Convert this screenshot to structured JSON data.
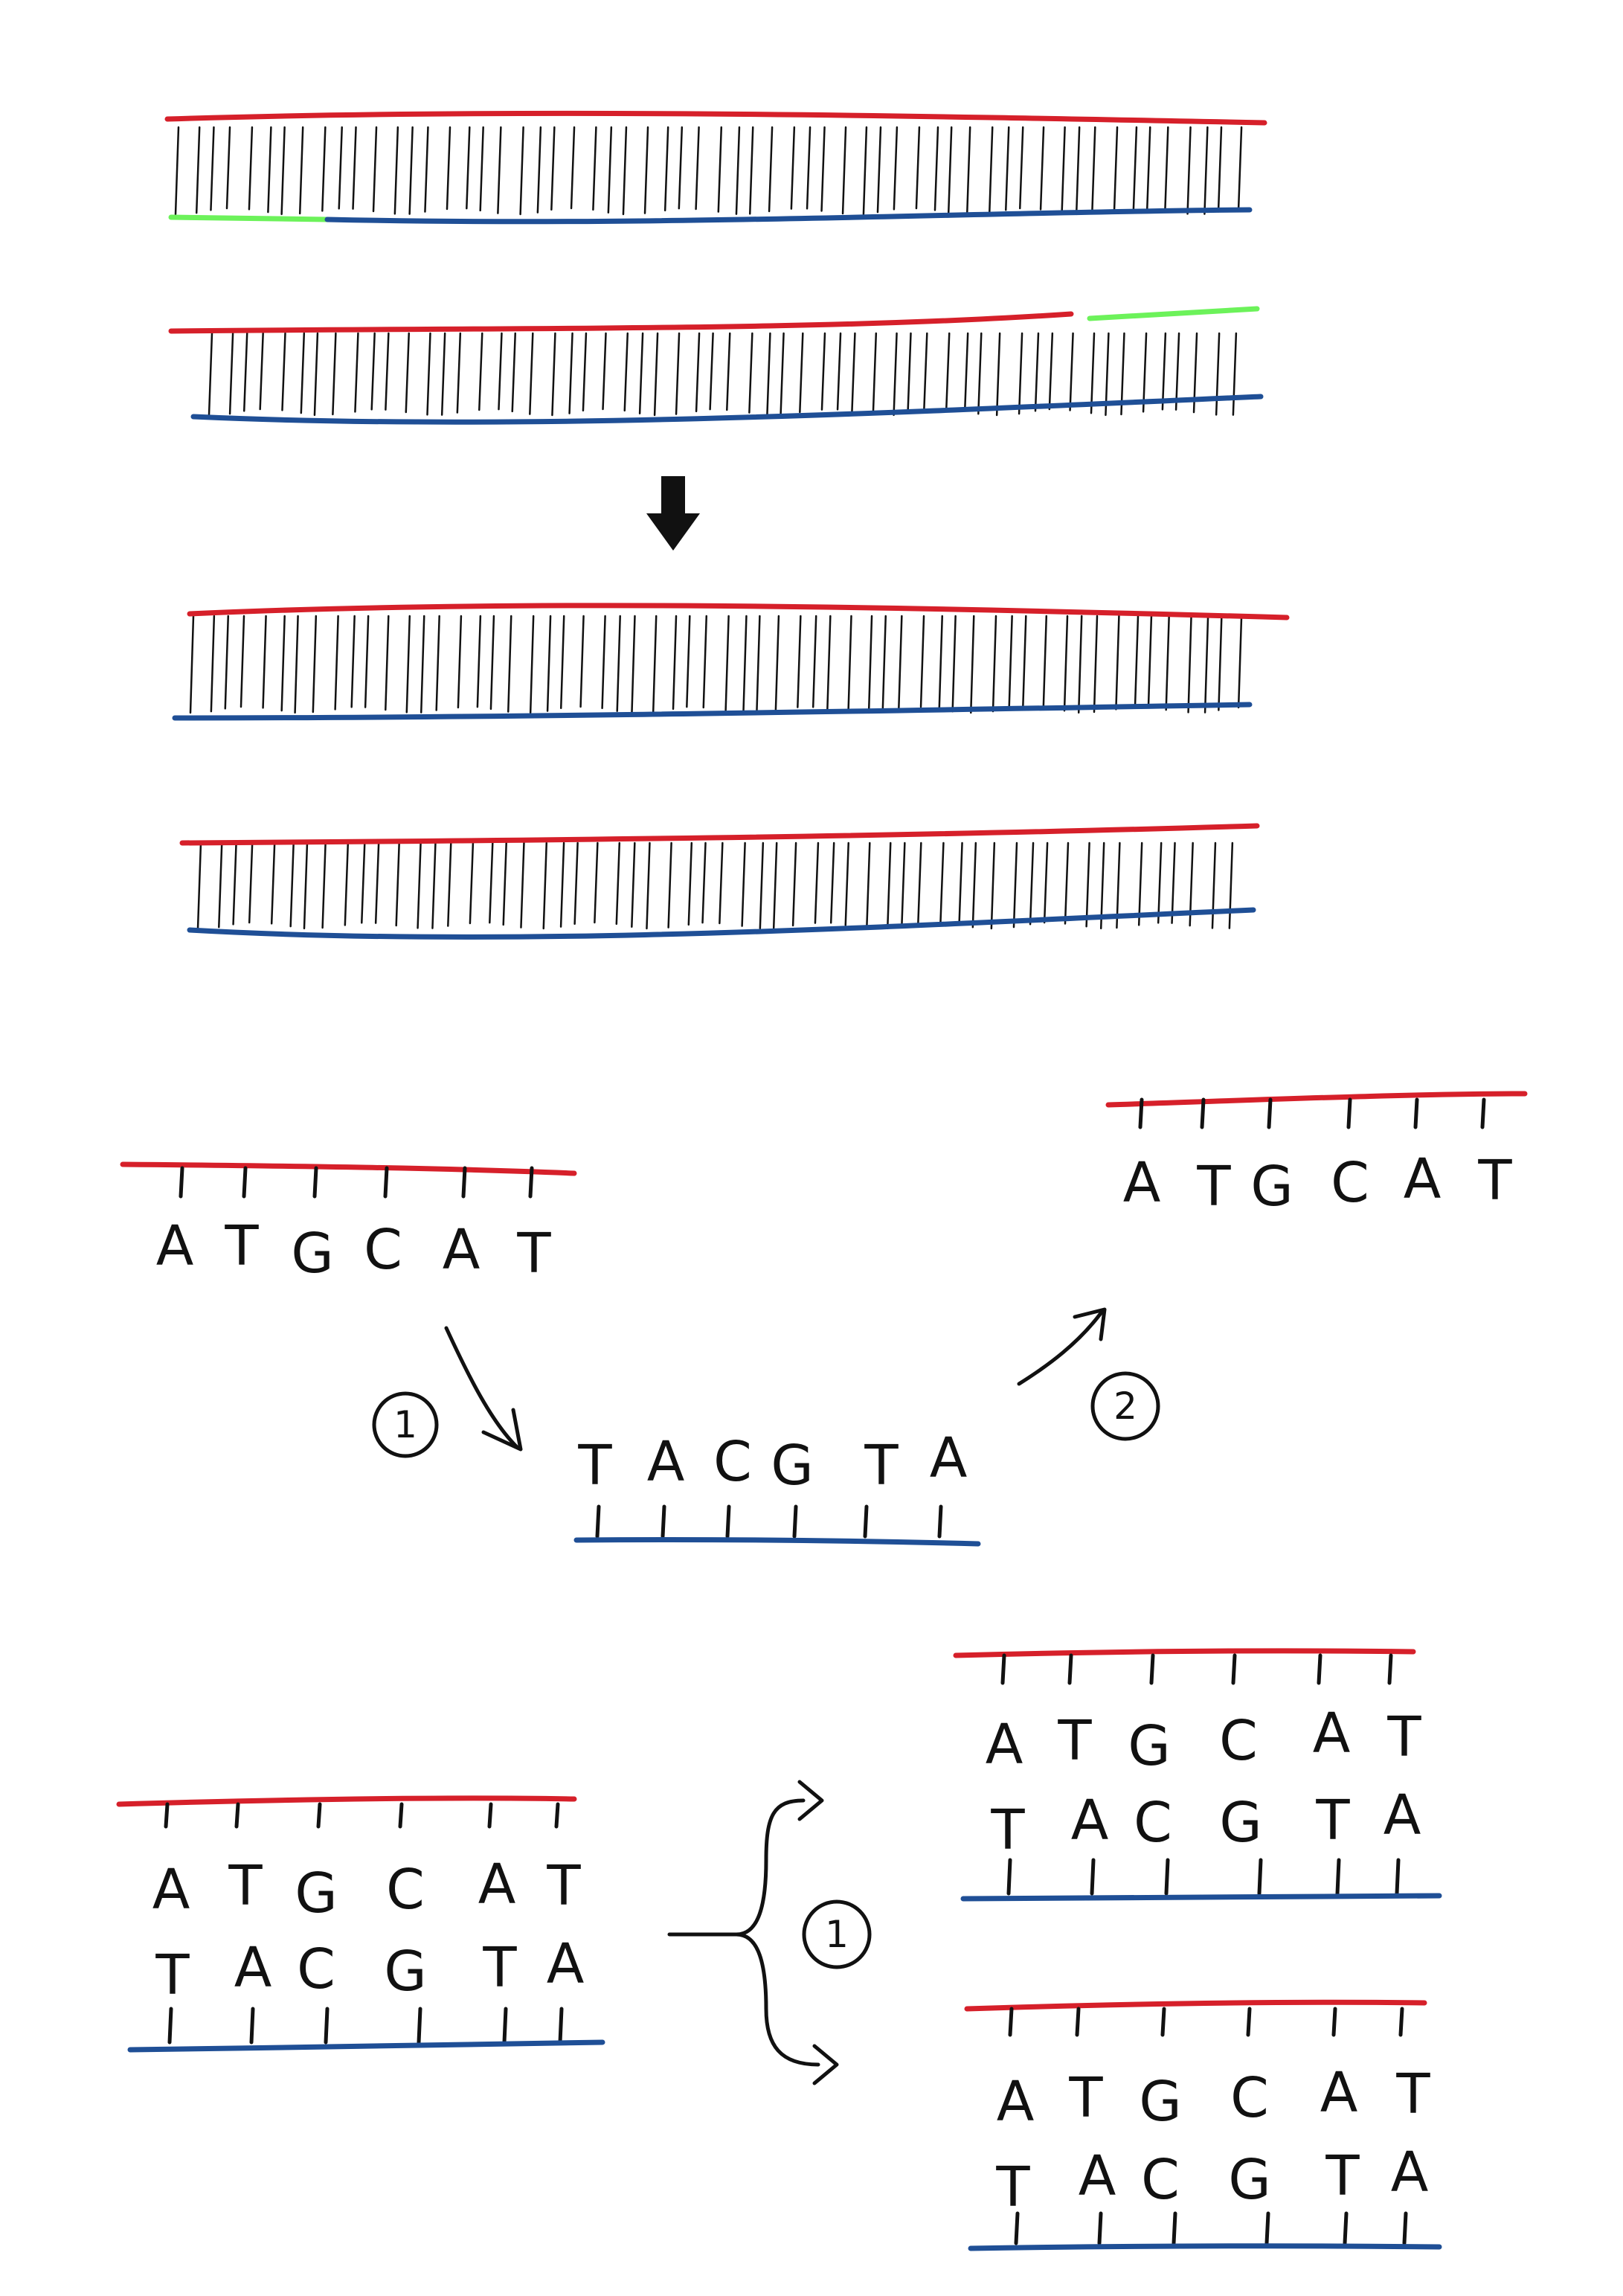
{
  "colors": {
    "strand_top": "#d6202a",
    "strand_bottom": "#1f4f96",
    "primer": "#6cf25a",
    "rungs": "#111111",
    "ink": "#111111"
  },
  "icons": {
    "downward_arrow": "thick-down-arrow-icon",
    "curved_arrow": "curved-arrow-icon",
    "branch_arrow": "brace-split-arrow-icon"
  },
  "middle_section": {
    "template_bases": [
      "A",
      "T",
      "G",
      "C",
      "A",
      "T"
    ],
    "complement_bases": [
      "T",
      "A",
      "C",
      "G",
      "T",
      "A"
    ],
    "copy_bases": [
      "A",
      "T",
      "G",
      "C",
      "A",
      "T"
    ],
    "step_1_label": "1",
    "step_2_label": "2"
  },
  "bottom_section": {
    "parent_top_bases": [
      "A",
      "T",
      "G",
      "C",
      "A",
      "T"
    ],
    "parent_bottom_bases": [
      "T",
      "A",
      "C",
      "G",
      "T",
      "A"
    ],
    "daughter_1_top_bases": [
      "A",
      "T",
      "G",
      "C",
      "A",
      "T"
    ],
    "daughter_1_bottom_bases": [
      "T",
      "A",
      "C",
      "G",
      "T",
      "A"
    ],
    "daughter_2_top_bases": [
      "A",
      "T",
      "G",
      "C",
      "A",
      "T"
    ],
    "daughter_2_bottom_bases": [
      "T",
      "A",
      "C",
      "G",
      "T",
      "A"
    ],
    "step_label": "1"
  }
}
